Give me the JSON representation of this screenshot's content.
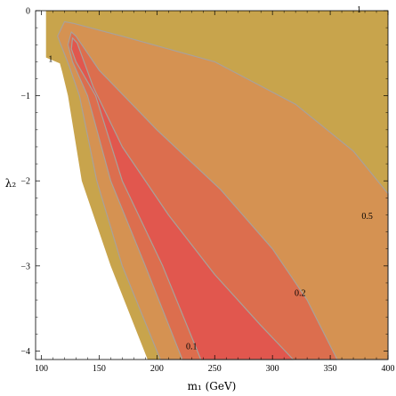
{
  "chart_data": {
    "type": "contour",
    "xlabel": "m₁ (GeV)",
    "ylabel": "λ₂",
    "xlim": [
      95,
      400
    ],
    "ylim": [
      -4.1,
      0
    ],
    "grid": false,
    "x_ticks": [
      100,
      150,
      200,
      250,
      300,
      350,
      400
    ],
    "y_ticks": [
      0,
      -1,
      -2,
      -3,
      -4
    ],
    "colors": {
      "level_1": "#c8a44c",
      "level_0_5": "#d59252",
      "level_0_2": "#dc6e4e",
      "level_0_1": "#e1574e",
      "contour_line": "#a9a19a"
    },
    "regions": [
      {
        "level_label": "1",
        "color_key": "level_1",
        "boundary": [
          [
            104,
            -0.55
          ],
          [
            104,
            0
          ],
          [
            400,
            0
          ],
          [
            400,
            -4.1
          ],
          [
            192,
            -4.1
          ],
          [
            160,
            -3.0
          ],
          [
            135,
            -2.0
          ],
          [
            123,
            -1.0
          ],
          [
            118,
            -0.72
          ],
          [
            116,
            -0.62
          ]
        ]
      },
      {
        "level_label": "0.5",
        "color_key": "level_0_5",
        "boundary": [
          [
            114,
            -0.3
          ],
          [
            120,
            -0.13
          ],
          [
            128,
            -0.15
          ],
          [
            170,
            -0.3
          ],
          [
            250,
            -0.6
          ],
          [
            320,
            -1.1
          ],
          [
            370,
            -1.65
          ],
          [
            400,
            -2.15
          ],
          [
            400,
            -4.1
          ],
          [
            203,
            -4.1
          ],
          [
            170,
            -3.0
          ],
          [
            148,
            -2.0
          ],
          [
            133,
            -1.0
          ],
          [
            124,
            -0.65
          ]
        ]
      },
      {
        "level_label": "0.2",
        "color_key": "level_0_2",
        "boundary": [
          [
            123,
            -0.4
          ],
          [
            126,
            -0.25
          ],
          [
            130,
            -0.3
          ],
          [
            150,
            -0.7
          ],
          [
            200,
            -1.4
          ],
          [
            255,
            -2.1
          ],
          [
            300,
            -2.8
          ],
          [
            330,
            -3.4
          ],
          [
            356,
            -4.1
          ],
          [
            222,
            -4.1
          ],
          [
            190,
            -3.0
          ],
          [
            160,
            -2.0
          ],
          [
            140,
            -1.0
          ],
          [
            127,
            -0.6
          ]
        ]
      },
      {
        "level_label": "0.1",
        "color_key": "level_0_1",
        "boundary": [
          [
            126,
            -0.45
          ],
          [
            127,
            -0.32
          ],
          [
            131,
            -0.38
          ],
          [
            145,
            -0.9
          ],
          [
            170,
            -1.6
          ],
          [
            210,
            -2.4
          ],
          [
            250,
            -3.1
          ],
          [
            290,
            -3.7
          ],
          [
            318,
            -4.1
          ],
          [
            238,
            -4.1
          ],
          [
            205,
            -3.0
          ],
          [
            170,
            -2.0
          ],
          [
            147,
            -1.0
          ],
          [
            130,
            -0.6
          ]
        ]
      }
    ],
    "annotations": [
      {
        "text": "1",
        "x": 108,
        "y": -0.6
      },
      {
        "text": "1",
        "x": 375,
        "y": -0.02
      },
      {
        "text": "0.5",
        "x": 382,
        "y": -2.45
      },
      {
        "text": "0.2",
        "x": 324,
        "y": -3.35
      },
      {
        "text": "0.1",
        "x": 230,
        "y": -3.98
      }
    ]
  }
}
